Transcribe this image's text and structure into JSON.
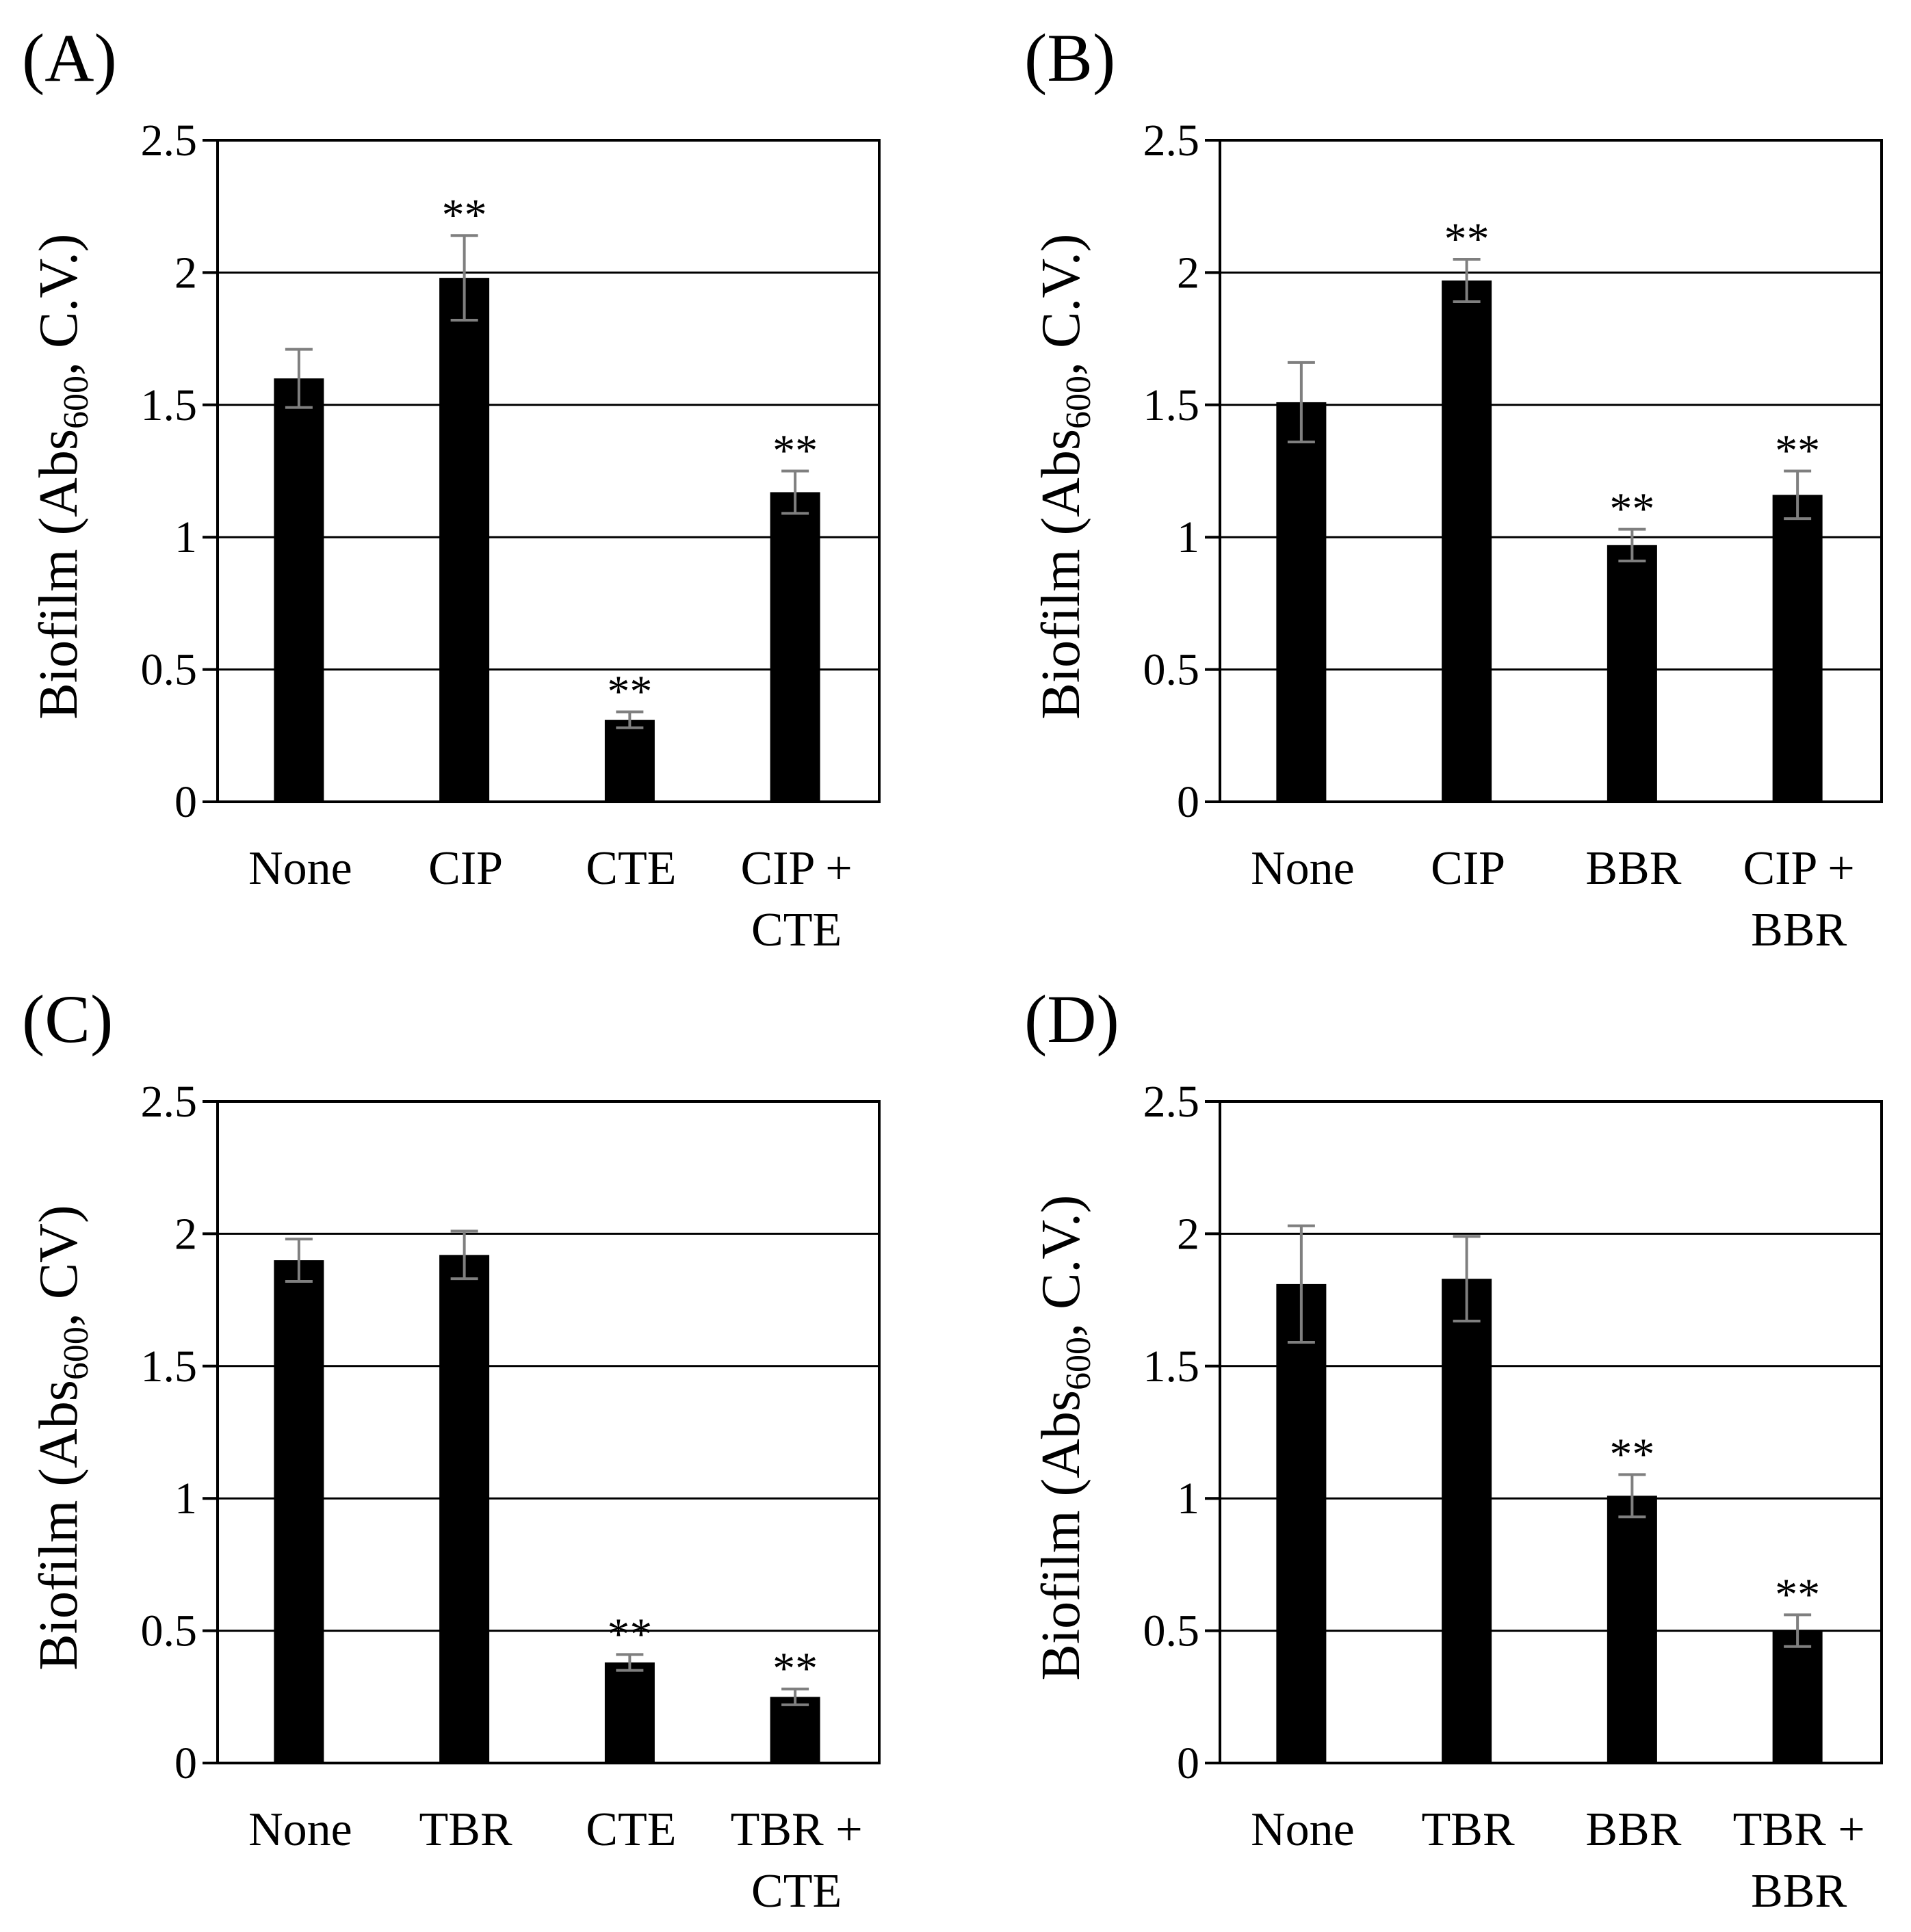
{
  "colors": {
    "bar": "#000000",
    "grid": "#000000",
    "error": "#7f7f7f",
    "frame": "#000000"
  },
  "chart_data": [
    {
      "type": "bar",
      "title": "(A)",
      "ylabel_main": "Biofilm (Abs",
      "ylabel_sub": "600",
      "ylabel_tail": ", C.V.)",
      "ylim": [
        0,
        2.5
      ],
      "ticks": [
        "0",
        "0.5",
        "1",
        "1.5",
        "2",
        "2.5"
      ],
      "categories": [
        [
          "None"
        ],
        [
          "CIP"
        ],
        [
          "CTE"
        ],
        [
          "CIP +",
          "CTE"
        ]
      ],
      "values": [
        1.6,
        1.98,
        0.31,
        1.17
      ],
      "errors": [
        0.11,
        0.16,
        0.03,
        0.08
      ],
      "significance": [
        "",
        "**",
        "**",
        "**"
      ]
    },
    {
      "type": "bar",
      "title": "(B)",
      "ylabel_main": "Biofilm (Abs",
      "ylabel_sub": "600",
      "ylabel_tail": ", C.V.)",
      "ylim": [
        0,
        2.5
      ],
      "ticks": [
        "0",
        "0.5",
        "1",
        "1.5",
        "2",
        "2.5"
      ],
      "categories": [
        [
          "None"
        ],
        [
          "CIP"
        ],
        [
          "BBR"
        ],
        [
          "CIP +",
          "BBR"
        ]
      ],
      "values": [
        1.51,
        1.97,
        0.97,
        1.16
      ],
      "errors": [
        0.15,
        0.08,
        0.06,
        0.09
      ],
      "significance": [
        "",
        "**",
        "**",
        "**"
      ]
    },
    {
      "type": "bar",
      "title": "(C)",
      "ylabel_main": "Biofilm (Abs",
      "ylabel_sub": "600",
      "ylabel_tail": ", CV)",
      "ylim": [
        0,
        2.5
      ],
      "ticks": [
        "0",
        "0.5",
        "1",
        "1.5",
        "2",
        "2.5"
      ],
      "categories": [
        [
          "None"
        ],
        [
          "TBR"
        ],
        [
          "CTE"
        ],
        [
          "TBR +",
          "CTE"
        ]
      ],
      "values": [
        1.9,
        1.92,
        0.38,
        0.25
      ],
      "errors": [
        0.08,
        0.09,
        0.03,
        0.03
      ],
      "significance": [
        "",
        "",
        "**",
        "**"
      ]
    },
    {
      "type": "bar",
      "title": "(D)",
      "ylabel_main": "Biofilm (Abs",
      "ylabel_sub": "600",
      "ylabel_tail": ", C.V.)",
      "ylim": [
        0,
        2.5
      ],
      "ticks": [
        "0",
        "0.5",
        "1",
        "1.5",
        "2",
        "2.5"
      ],
      "categories": [
        [
          "None"
        ],
        [
          "TBR"
        ],
        [
          "BBR"
        ],
        [
          "TBR +",
          "BBR"
        ]
      ],
      "values": [
        1.81,
        1.83,
        1.01,
        0.5
      ],
      "errors": [
        0.22,
        0.16,
        0.08,
        0.06
      ],
      "significance": [
        "",
        "",
        "**",
        "**"
      ]
    }
  ]
}
